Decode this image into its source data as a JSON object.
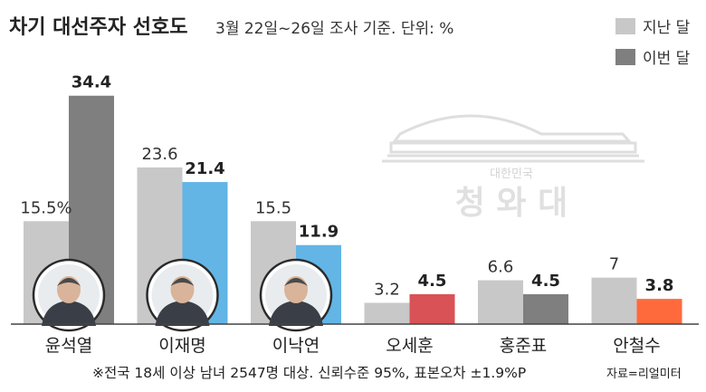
{
  "chart_data": {
    "type": "bar",
    "title": "차기 대선주자 선호도",
    "subtitle": "3월 22일~26일 조사 기준. 단위: %",
    "categories": [
      "윤석열",
      "이재명",
      "이낙연",
      "오세훈",
      "홍준표",
      "안철수"
    ],
    "series": [
      {
        "name": "지난 달",
        "values": [
          15.5,
          23.6,
          15.5,
          3.2,
          6.6,
          7
        ],
        "labels": [
          "15.5%",
          "23.6",
          "15.5",
          "3.2",
          "6.6",
          "7"
        ]
      },
      {
        "name": "이번 달",
        "values": [
          34.4,
          21.4,
          11.9,
          4.5,
          4.5,
          3.8
        ],
        "labels": [
          "34.4",
          "21.4",
          "11.9",
          "4.5",
          "4.5",
          "3.8"
        ]
      }
    ],
    "current_colors": [
      "#7f7f7f",
      "#62b5e5",
      "#62b5e5",
      "#d95256",
      "#7f7f7f",
      "#ff6a3d"
    ],
    "previous_color": "#c8c8c8",
    "ylim": [
      0,
      36
    ],
    "watermark": {
      "top": "대한민국",
      "main": "청 와 대"
    }
  },
  "legend": [
    {
      "label": "지난 달",
      "color": "#c8c8c8"
    },
    {
      "label": "이번 달",
      "color": "#7f7f7f"
    }
  ],
  "footnote": "※전국 18세 이상 남녀 2547명 대상.  신뢰수준 95%, 표본오차 ±1.9%P",
  "source": "자료=리얼미터"
}
